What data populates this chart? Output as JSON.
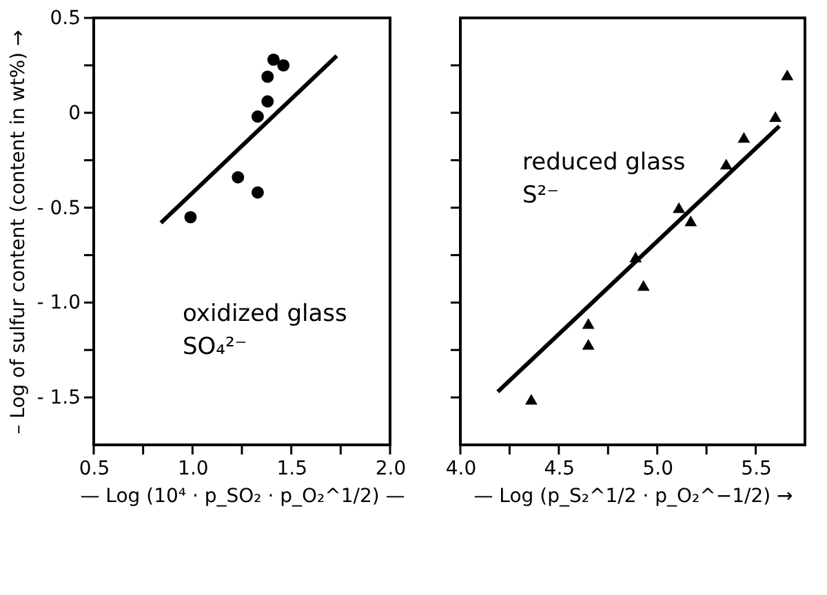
{
  "chart_data": [
    {
      "type": "scatter",
      "xlabel": "— Log (10⁴ · p_SO₂ · p_O₂^1/2) —",
      "ylabel": "– Log of sulfur content (content in wt%) →",
      "xlim": [
        0.5,
        2.0
      ],
      "xticks": [
        {
          "value": 0.5,
          "label": "0.5"
        },
        {
          "value": 0.75,
          "label": null
        },
        {
          "value": 1.0,
          "label": "1.0"
        },
        {
          "value": 1.25,
          "label": null
        },
        {
          "value": 1.5,
          "label": "1.5"
        },
        {
          "value": 1.75,
          "label": null
        },
        {
          "value": 2.0,
          "label": "2.0"
        }
      ],
      "ylim": [
        -1.75,
        0.5
      ],
      "yticks": [
        {
          "value": -1.5,
          "label": "- 1.5"
        },
        {
          "value": -1.25,
          "label": null
        },
        {
          "value": -1.0,
          "label": "- 1.0"
        },
        {
          "value": -0.75,
          "label": null
        },
        {
          "value": -0.5,
          "label": "- 0.5"
        },
        {
          "value": -0.25,
          "label": null
        },
        {
          "value": 0,
          "label": "0"
        },
        {
          "value": 0.25,
          "label": null
        },
        {
          "value": 0.5,
          "label": "0.5"
        }
      ],
      "grid": false,
      "annotations": [
        "oxidized glass",
        "SO₄²⁻"
      ],
      "series": [
        {
          "type": "scatter",
          "marker": "circle",
          "color": "#000000",
          "x": [
            0.99,
            1.23,
            1.33,
            1.33,
            1.38,
            1.38,
            1.41,
            1.46
          ],
          "values": [
            -0.55,
            -0.34,
            -0.42,
            -0.02,
            0.06,
            0.19,
            0.28,
            0.25
          ]
        },
        {
          "type": "line",
          "line_style": "solid",
          "color": "#000000",
          "x": [
            0.84,
            1.73
          ],
          "values": [
            -0.58,
            0.3
          ]
        }
      ]
    },
    {
      "type": "scatter",
      "xlabel": "— Log (p_S₂^1/2 · p_O₂^−1/2) →",
      "tick_labels": "x",
      "xlim": [
        4.0,
        5.75
      ],
      "xticks": [
        {
          "value": 4.0,
          "label": "4.0"
        },
        {
          "value": 4.25,
          "label": null
        },
        {
          "value": 4.5,
          "label": "4.5"
        },
        {
          "value": 4.75,
          "label": null
        },
        {
          "value": 5.0,
          "label": "5.0"
        },
        {
          "value": 5.25,
          "label": null
        },
        {
          "value": 5.5,
          "label": "5.5"
        }
      ],
      "ylim": [
        -1.75,
        0.5
      ],
      "yticks": [
        -1.5,
        -1.25,
        -1.0,
        -0.75,
        -0.5,
        -0.25,
        0,
        0.25
      ],
      "grid": false,
      "annotations": [
        "reduced glass",
        "S²⁻"
      ],
      "series": [
        {
          "type": "scatter",
          "marker": "triangle",
          "color": "#000000",
          "x": [
            4.36,
            4.65,
            4.65,
            4.89,
            4.93,
            5.11,
            5.17,
            5.35,
            5.44,
            5.6,
            5.66
          ],
          "values": [
            -1.51,
            -1.22,
            -1.11,
            -0.76,
            -0.91,
            -0.5,
            -0.57,
            -0.27,
            -0.13,
            -0.02,
            0.2
          ]
        },
        {
          "type": "line",
          "line_style": "solid",
          "color": "#000000",
          "x": [
            4.19,
            5.62
          ],
          "values": [
            -1.47,
            -0.07
          ]
        }
      ]
    }
  ]
}
